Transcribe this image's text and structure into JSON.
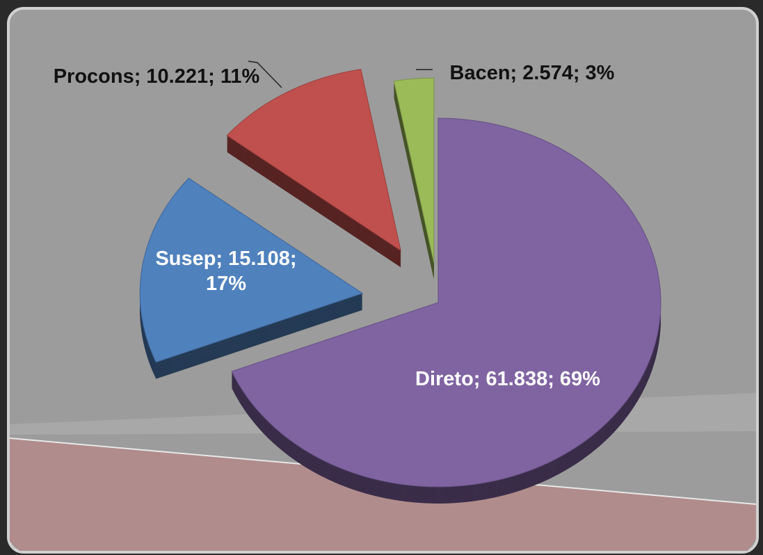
{
  "chart_data": {
    "type": "pie",
    "categories": [
      "Direto",
      "Susep",
      "Procons",
      "Bacen"
    ],
    "values": [
      61838,
      15108,
      10221,
      2574
    ],
    "value_labels": [
      "Direto; 61.838; 69%",
      "Susep; 15.108; 17%",
      "Procons; 10.221; 11%",
      "Bacen; 2.574; 3%"
    ],
    "colors": [
      "#8064a2",
      "#4f81bd",
      "#c0504d",
      "#9bbb59"
    ]
  }
}
